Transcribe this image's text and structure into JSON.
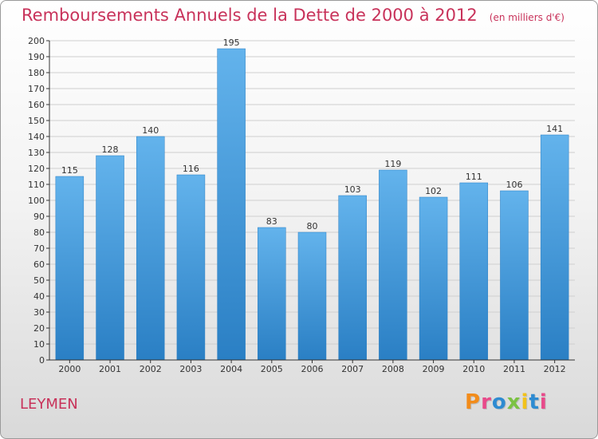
{
  "title": "Remboursements Annuels de la Dette de 2000 à 2012",
  "subtitle": "(en milliers d'€)",
  "location": "LEYMEN",
  "logo": {
    "text": "Proxiti",
    "colors": [
      "#f28c1b",
      "#e84a8a",
      "#2e8bd1",
      "#7bc242",
      "#f2c21b",
      "#2e8bd1",
      "#e84a8a"
    ]
  },
  "colors": {
    "title": "#c8325a",
    "bar_light": "#63b3ec",
    "bar_dark": "#2a7fc4",
    "grid": "#cfcfcf",
    "axis": "#333333"
  },
  "chart_data": {
    "type": "bar",
    "categories": [
      "2000",
      "2001",
      "2002",
      "2003",
      "2004",
      "2005",
      "2006",
      "2007",
      "2008",
      "2009",
      "2010",
      "2011",
      "2012"
    ],
    "values": [
      115,
      128,
      140,
      116,
      195,
      83,
      80,
      103,
      119,
      102,
      111,
      106,
      141
    ],
    "ylim": [
      0,
      200
    ],
    "ytick_step": 10,
    "grid": true,
    "data_labels": true
  }
}
